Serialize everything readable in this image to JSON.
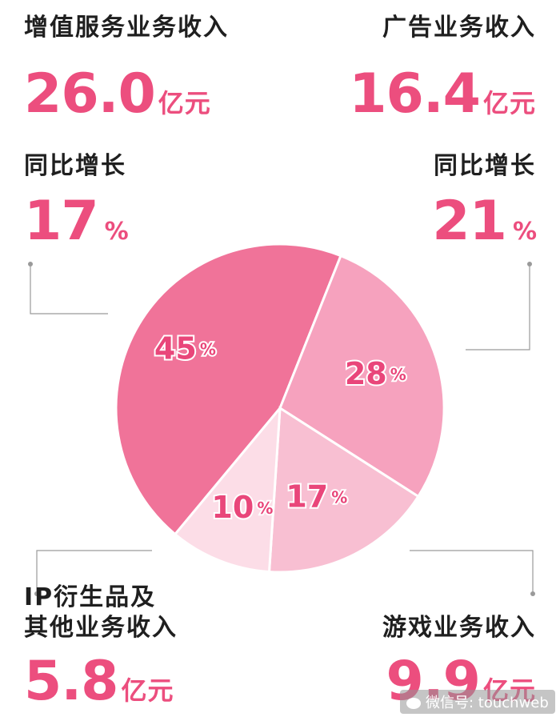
{
  "blocks": {
    "vas": {
      "label": "增值服务业务收入",
      "amount": "26.0",
      "amount_unit": "亿元",
      "growth_label": "同比增长",
      "growth": "17",
      "growth_unit": "%"
    },
    "ads": {
      "label": "广告业务收入",
      "amount": "16.4",
      "amount_unit": "亿元",
      "growth_label": "同比增长",
      "growth": "21",
      "growth_unit": "%"
    },
    "ip": {
      "label_line1": "IP衍生品及",
      "label_line2": "其他业务收入",
      "amount": "5.8",
      "amount_unit": "亿元"
    },
    "games": {
      "label": "游戏业务收入",
      "amount": "9.9",
      "amount_unit": "亿元"
    }
  },
  "watermark": "微信号: touchweb",
  "chart_data": {
    "type": "pie",
    "unit": "%",
    "slices": [
      {
        "value": 45,
        "color": "#f07399"
      },
      {
        "value": 28,
        "color": "#f6a2be"
      },
      {
        "value": 17,
        "color": "#f8bfd2"
      },
      {
        "value": 10,
        "color": "#fcdde7"
      }
    ]
  }
}
